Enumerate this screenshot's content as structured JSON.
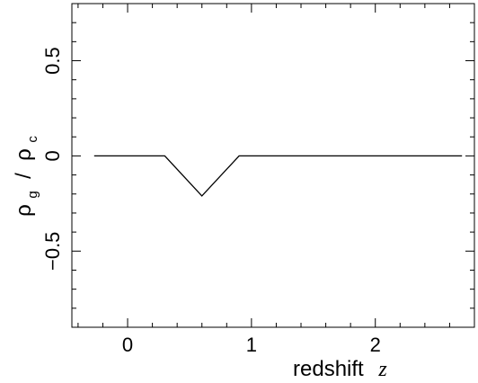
{
  "chart_data": {
    "type": "line",
    "title": "",
    "xlabel": "redshift",
    "xlabel_variable": "z",
    "ylabel": {
      "symbol_numerator": "ρ",
      "sub_numerator": "g",
      "separator": " / ",
      "symbol_denominator": "ρ",
      "sub_denominator": "c"
    },
    "xlim": [
      -0.45,
      2.8
    ],
    "ylim": [
      -0.9,
      0.8
    ],
    "x_ticks_major": [
      0,
      1,
      2
    ],
    "x_tick_labels": [
      "0",
      "1",
      "2"
    ],
    "x_ticks_minor": [
      -0.4,
      -0.2,
      0.2,
      0.4,
      0.6,
      0.8,
      1.2,
      1.4,
      1.6,
      1.8,
      2.2,
      2.4,
      2.6,
      2.8
    ],
    "y_ticks_major": [
      -0.5,
      0,
      0.5
    ],
    "y_tick_labels": [
      "−0.5",
      "0",
      "0.5"
    ],
    "y_ticks_minor": [
      -0.8,
      -0.7,
      -0.6,
      -0.4,
      -0.3,
      -0.2,
      -0.1,
      0.1,
      0.2,
      0.3,
      0.4,
      0.6,
      0.7,
      0.8
    ],
    "grid": false,
    "series": [
      {
        "x": [
          -0.27,
          0.3,
          0.6,
          0.9,
          2.7
        ],
        "y": [
          0,
          0,
          -0.21,
          0,
          0
        ]
      }
    ]
  }
}
